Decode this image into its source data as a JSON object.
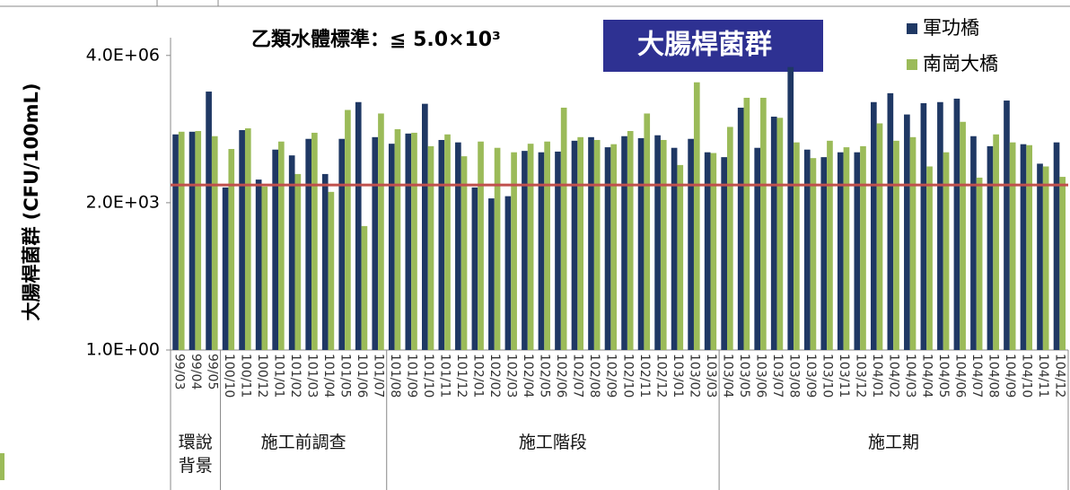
{
  "chart_data": {
    "type": "bar",
    "title": "乙類水體標準：≦ 5.0×10³",
    "badge": "大腸桿菌群",
    "y_label": "大腸桿菌群 (CFU/100mL)",
    "log_scale": true,
    "legend_position": "top-right",
    "categories": [
      "99/03",
      "99/04",
      "99/05",
      "100/10",
      "100/11",
      "100/12",
      "101/01",
      "101/02",
      "101/03",
      "101/04",
      "101/05",
      "101/06",
      "101/07",
      "101/08",
      "101/09",
      "101/10",
      "101/11",
      "101/12",
      "102/01",
      "102/02",
      "102/03",
      "102/04",
      "102/05",
      "102/06",
      "102/07",
      "102/08",
      "102/09",
      "102/10",
      "102/11",
      "102/12",
      "103/01",
      "103/02",
      "103/03",
      "103/04",
      "103/05",
      "103/06",
      "103/07",
      "103/08",
      "103/09",
      "103/10",
      "103/11",
      "103/12",
      "104/01",
      "104/02",
      "104/03",
      "104/04",
      "104/05",
      "104/06",
      "104/07",
      "104/08",
      "104/09",
      "104/10",
      "104/11",
      "104/12"
    ],
    "groups": [
      {
        "label": "環說背景",
        "size": 3
      },
      {
        "label": "施工前調查",
        "size": 10
      },
      {
        "label": "施工階段",
        "size": 20
      },
      {
        "label": "施工期",
        "size": 21
      }
    ],
    "series": [
      {
        "name": "軍功橋",
        "color": "#1f3864",
        "values": [
          68000,
          78000,
          620000,
          4400,
          85000,
          6600,
          31000,
          23000,
          54000,
          8800,
          54000,
          360000,
          59000,
          42000,
          71000,
          330000,
          51000,
          45000,
          4400,
          2500,
          2800,
          29000,
          27000,
          28000,
          49000,
          59000,
          35000,
          62000,
          56000,
          65000,
          34000,
          54000,
          27000,
          21000,
          270000,
          34000,
          170000,
          2200000,
          31000,
          21000,
          27000,
          27000,
          360000,
          570000,
          190000,
          340000,
          360000,
          430000,
          62000,
          37000,
          390000,
          41000,
          15000,
          45000
        ]
      },
      {
        "name": "南崗大橋",
        "color": "#9bbb59",
        "values": [
          78000,
          81000,
          62000,
          32000,
          93000,
          4600,
          47000,
          8800,
          74000,
          3500,
          240000,
          600,
          200000,
          89000,
          74000,
          37000,
          68000,
          22000,
          47000,
          34000,
          27000,
          42000,
          47000,
          270000,
          59000,
          51000,
          41000,
          81000,
          200000,
          51000,
          14000,
          1000000,
          26000,
          100000,
          450000,
          450000,
          160000,
          45000,
          20000,
          49000,
          35000,
          37000,
          120000,
          49000,
          59000,
          13000,
          27000,
          130000,
          7300,
          68000,
          45000,
          39000,
          13000,
          7600
        ]
      }
    ],
    "reference_line": {
      "value": 5000,
      "color": "#c0504d"
    },
    "ylim": [
      1,
      10000000
    ],
    "yticks": [
      {
        "value": 1,
        "label": "1.0E+00"
      },
      {
        "value": 2000,
        "label": "2.0E+03"
      },
      {
        "value": 4000000,
        "label": "4.0E+06"
      }
    ]
  }
}
